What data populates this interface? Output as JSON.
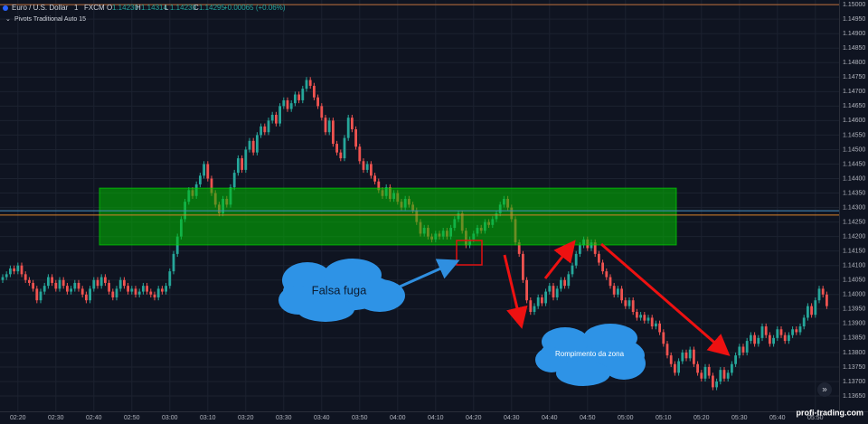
{
  "header": {
    "symbol": "Euro / U.S. Dollar",
    "interval": "1",
    "source": "FXCM",
    "ohlc": [
      {
        "label": "O",
        "value": "1.14230"
      },
      {
        "label": "H",
        "value": "1.14314"
      },
      {
        "label": "L",
        "value": "1.14230"
      },
      {
        "label": "C",
        "value": "1.14295"
      }
    ],
    "change": "+0.00065 (+0.06%)",
    "indicator": "Pivots Traditional Auto 15"
  },
  "annotations": {
    "false_breakout": "Falsa fuga",
    "zone_break": "Rompimento da zona"
  },
  "watermark": "profi-trading.com",
  "chart_data": {
    "type": "candlestick",
    "categories": [
      null,
      null,
      null,
      null,
      "02:20",
      null,
      null,
      null,
      null,
      null,
      null,
      null,
      null,
      null,
      "02:30",
      null,
      null,
      null,
      null,
      null,
      null,
      null,
      null,
      null,
      "02:40",
      null,
      null,
      null,
      null,
      null,
      null,
      null,
      null,
      null,
      "02:50",
      null,
      null,
      null,
      null,
      null,
      null,
      null,
      null,
      null,
      "03:00",
      null,
      null,
      null,
      null,
      null,
      null,
      null,
      null,
      null,
      "03:10",
      null,
      null,
      null,
      null,
      null,
      null,
      null,
      null,
      null,
      "03:20",
      null,
      null,
      null,
      null,
      null,
      null,
      null,
      null,
      null,
      "03:30",
      null,
      null,
      null,
      null,
      null,
      null,
      null,
      null,
      null,
      "03:40",
      null,
      null,
      null,
      null,
      null,
      null,
      null,
      null,
      null,
      "03:50",
      null,
      null,
      null,
      null,
      null,
      null,
      null,
      null,
      null,
      "04:00",
      null,
      null,
      null,
      null,
      null,
      null,
      null,
      null,
      null,
      "04:10",
      null,
      null,
      null,
      null,
      null,
      null,
      null,
      null,
      null,
      "04:20",
      null,
      null,
      null,
      null,
      null,
      null,
      null,
      null,
      null,
      "04:30",
      null,
      null,
      null,
      null,
      null,
      null,
      null,
      null,
      null,
      "04:40",
      null,
      null,
      null,
      null,
      null,
      null,
      null,
      null,
      null,
      "04:50",
      null,
      null,
      null,
      null,
      null,
      null,
      null,
      null,
      null,
      "05:00",
      null,
      null,
      null,
      null,
      null,
      null,
      null,
      null,
      null,
      "05:10",
      null,
      null,
      null,
      null,
      null,
      null,
      null,
      null,
      null,
      "05:20",
      null,
      null,
      null,
      null,
      null,
      null,
      null,
      null,
      null,
      "05:30",
      null,
      null,
      null,
      null,
      null,
      null,
      null,
      null,
      null,
      "05:40",
      null,
      null,
      null,
      null,
      null,
      null,
      null,
      null,
      null,
      "05:50",
      null,
      null,
      null
    ],
    "open": [
      1.1405,
      1.1406,
      1.1407,
      1.1409,
      1.1408,
      1.141,
      1.1407,
      1.1405,
      1.1404,
      1.1402,
      1.1398,
      1.1401,
      1.1403,
      1.1406,
      1.1404,
      1.1402,
      1.1405,
      1.1403,
      1.1401,
      1.1402,
      1.1404,
      1.1402,
      1.14,
      1.1398,
      1.1402,
      1.1405,
      1.1403,
      1.1406,
      1.1404,
      1.1401,
      1.1399,
      1.1402,
      1.1405,
      1.1403,
      1.1401,
      1.1402,
      1.14,
      1.1401,
      1.1403,
      1.1401,
      1.14,
      1.1399,
      1.1402,
      1.1401,
      1.1403,
      1.1408,
      1.1414,
      1.142,
      1.1426,
      1.1432,
      1.1436,
      1.1434,
      1.1438,
      1.1441,
      1.1445,
      1.144,
      1.1435,
      1.1431,
      1.1428,
      1.1433,
      1.1431,
      1.1437,
      1.1442,
      1.1447,
      1.1443,
      1.145,
      1.1453,
      1.1449,
      1.1455,
      1.1458,
      1.1456,
      1.146,
      1.1462,
      1.1459,
      1.1465,
      1.1467,
      1.1464,
      1.1466,
      1.1469,
      1.1467,
      1.1471,
      1.1474,
      1.1472,
      1.1468,
      1.1465,
      1.1461,
      1.1456,
      1.146,
      1.1452,
      1.1449,
      1.1447,
      1.1454,
      1.1461,
      1.1457,
      1.1451,
      1.1446,
      1.1443,
      1.1445,
      1.1441,
      1.1439,
      1.1436,
      1.1434,
      1.1437,
      1.1433,
      1.1435,
      1.1432,
      1.143,
      1.1433,
      1.1431,
      1.1429,
      1.1425,
      1.1421,
      1.1423,
      1.142,
      1.1419,
      1.1421,
      1.142,
      1.1422,
      1.142,
      1.1423,
      1.1426,
      1.1428,
      1.1422,
      1.1417,
      1.1419,
      1.1421,
      1.1423,
      1.1422,
      1.1425,
      1.1424,
      1.1426,
      1.1428,
      1.1431,
      1.1433,
      1.143,
      1.1426,
      1.1418,
      1.1414,
      1.1405,
      1.1398,
      1.1394,
      1.1396,
      1.1399,
      1.1397,
      1.1401,
      1.1403,
      1.1399,
      1.1402,
      1.1405,
      1.1403,
      1.1407,
      1.141,
      1.1414,
      1.1417,
      1.1419,
      1.1416,
      1.1418,
      1.1414,
      1.1411,
      1.1408,
      1.1406,
      1.1403,
      1.14,
      1.1402,
      1.1398,
      1.1396,
      1.1398,
      1.1394,
      1.1392,
      1.1393,
      1.1391,
      1.1392,
      1.1389,
      1.139,
      1.1387,
      1.1383,
      1.1379,
      1.1376,
      1.1373,
      1.1377,
      1.138,
      1.1378,
      1.1381,
      1.1376,
      1.1373,
      1.1371,
      1.1375,
      1.1372,
      1.1368,
      1.137,
      1.1374,
      1.1371,
      1.1373,
      1.1376,
      1.1379,
      1.1382,
      1.138,
      1.1384,
      1.1386,
      1.1383,
      1.1385,
      1.1389,
      1.1386,
      1.1383,
      1.1385,
      1.1388,
      1.1386,
      1.1384,
      1.1386,
      1.1388,
      1.1387,
      1.1389,
      1.1392,
      1.1396,
      1.1393,
      1.1398,
      1.1402,
      1.14
    ],
    "high": [
      1.1407,
      1.1408,
      1.141,
      1.141,
      1.1411,
      1.1411,
      1.1408,
      1.1406,
      1.1405,
      1.1403,
      1.1402,
      1.1404,
      1.1407,
      1.1407,
      1.1405,
      1.1406,
      1.1406,
      1.1404,
      1.1403,
      1.1405,
      1.1405,
      1.1403,
      1.1401,
      1.1403,
      1.1406,
      1.1406,
      1.1407,
      1.1407,
      1.1405,
      1.1402,
      1.1403,
      1.1406,
      1.1406,
      1.1404,
      1.1403,
      1.1403,
      1.1402,
      1.1404,
      1.1404,
      1.1402,
      1.1401,
      1.1403,
      1.1403,
      1.1404,
      1.1409,
      1.1415,
      1.1421,
      1.1427,
      1.1433,
      1.1437,
      1.1437,
      1.1439,
      1.1442,
      1.1446,
      1.1446,
      1.1441,
      1.1436,
      1.1432,
      1.1434,
      1.1434,
      1.1438,
      1.1443,
      1.1448,
      1.1448,
      1.1451,
      1.1454,
      1.1454,
      1.1456,
      1.1459,
      1.1459,
      1.1461,
      1.1463,
      1.1463,
      1.1466,
      1.1468,
      1.1468,
      1.1467,
      1.147,
      1.147,
      1.1472,
      1.1475,
      1.1475,
      1.1473,
      1.1469,
      1.1466,
      1.1462,
      1.1461,
      1.1461,
      1.1453,
      1.145,
      1.1455,
      1.1462,
      1.1462,
      1.1458,
      1.1452,
      1.1447,
      1.1446,
      1.1446,
      1.1442,
      1.144,
      1.1437,
      1.1438,
      1.1438,
      1.1436,
      1.1436,
      1.1433,
      1.1434,
      1.1434,
      1.1432,
      1.143,
      1.1426,
      1.1424,
      1.1424,
      1.1421,
      1.1422,
      1.1422,
      1.1423,
      1.1423,
      1.1424,
      1.1427,
      1.1429,
      1.1429,
      1.1423,
      1.142,
      1.1422,
      1.1424,
      1.1424,
      1.1426,
      1.1426,
      1.1427,
      1.1429,
      1.1432,
      1.1434,
      1.1434,
      1.1431,
      1.1427,
      1.1419,
      1.1415,
      1.1406,
      1.1399,
      1.1397,
      1.14,
      1.14,
      1.1402,
      1.1404,
      1.1404,
      1.1403,
      1.1406,
      1.1406,
      1.1408,
      1.1411,
      1.1415,
      1.1418,
      1.142,
      1.142,
      1.1419,
      1.1419,
      1.1415,
      1.1412,
      1.1409,
      1.1407,
      1.1404,
      1.1403,
      1.1403,
      1.1399,
      1.1399,
      1.1399,
      1.1395,
      1.1394,
      1.1394,
      1.1393,
      1.1393,
      1.1391,
      1.1391,
      1.1388,
      1.1384,
      1.138,
      1.1377,
      1.1378,
      1.1381,
      1.1381,
      1.1382,
      1.1382,
      1.1377,
      1.1374,
      1.1376,
      1.1376,
      1.1373,
      1.1371,
      1.1375,
      1.1375,
      1.1374,
      1.1377,
      1.138,
      1.1383,
      1.1383,
      1.1385,
      1.1387,
      1.1387,
      1.1386,
      1.139,
      1.139,
      1.1387,
      1.1386,
      1.1389,
      1.1389,
      1.1387,
      1.1387,
      1.1389,
      1.1389,
      1.139,
      1.1393,
      1.1397,
      1.1397,
      1.1399,
      1.1403,
      1.1403,
      1.1401
    ],
    "low": [
      1.1404,
      1.1405,
      1.1406,
      1.1407,
      1.1407,
      1.1406,
      1.1404,
      1.1403,
      1.1401,
      1.1397,
      1.1397,
      1.14,
      1.1402,
      1.1403,
      1.1401,
      1.1401,
      1.1402,
      1.14,
      1.14,
      1.1401,
      1.1401,
      1.1399,
      1.1397,
      1.1397,
      1.1401,
      1.1402,
      1.1402,
      1.1403,
      1.14,
      1.1398,
      1.1398,
      1.1401,
      1.1402,
      1.14,
      1.14,
      1.1399,
      1.1399,
      1.14,
      1.14,
      1.1399,
      1.1398,
      1.1398,
      1.14,
      1.14,
      1.1402,
      1.1407,
      1.1413,
      1.1419,
      1.1425,
      1.1431,
      1.1433,
      1.1433,
      1.1437,
      1.144,
      1.1439,
      1.1434,
      1.143,
      1.1427,
      1.1427,
      1.143,
      1.143,
      1.1436,
      1.1441,
      1.1442,
      1.1442,
      1.1449,
      1.1448,
      1.1448,
      1.1454,
      1.1455,
      1.1455,
      1.1459,
      1.1458,
      1.1458,
      1.1464,
      1.1463,
      1.1463,
      1.1465,
      1.1466,
      1.1466,
      1.147,
      1.1471,
      1.1467,
      1.1464,
      1.146,
      1.1455,
      1.1455,
      1.1451,
      1.1448,
      1.1446,
      1.1446,
      1.1453,
      1.1456,
      1.145,
      1.1445,
      1.1442,
      1.1442,
      1.144,
      1.1438,
      1.1435,
      1.1433,
      1.1433,
      1.1432,
      1.1432,
      1.1431,
      1.1429,
      1.1429,
      1.143,
      1.1428,
      1.1424,
      1.142,
      1.142,
      1.1419,
      1.1418,
      1.1418,
      1.1419,
      1.1419,
      1.1419,
      1.1419,
      1.1422,
      1.1425,
      1.1421,
      1.1416,
      1.1416,
      1.1418,
      1.142,
      1.1421,
      1.1421,
      1.1423,
      1.1423,
      1.1425,
      1.1427,
      1.143,
      1.1429,
      1.1425,
      1.1417,
      1.1413,
      1.1404,
      1.1397,
      1.1393,
      1.1393,
      1.1395,
      1.1396,
      1.1396,
      1.14,
      1.1398,
      1.1398,
      1.1401,
      1.1402,
      1.1402,
      1.1406,
      1.1409,
      1.1413,
      1.1416,
      1.1415,
      1.1415,
      1.1413,
      1.141,
      1.1407,
      1.1405,
      1.1402,
      1.1399,
      1.1399,
      1.1397,
      1.1395,
      1.1395,
      1.1393,
      1.1391,
      1.1391,
      1.139,
      1.139,
      1.1388,
      1.1388,
      1.1386,
      1.1382,
      1.1378,
      1.1375,
      1.1372,
      1.1372,
      1.1376,
      1.1377,
      1.1377,
      1.1375,
      1.1372,
      1.137,
      1.137,
      1.1371,
      1.1367,
      1.1367,
      1.1369,
      1.137,
      1.137,
      1.1372,
      1.1375,
      1.1378,
      1.1379,
      1.1379,
      1.1383,
      1.1382,
      1.1382,
      1.1384,
      1.1385,
      1.1382,
      1.1382,
      1.1384,
      1.1385,
      1.1383,
      1.1383,
      1.1385,
      1.1386,
      1.1386,
      1.1388,
      1.1391,
      1.1392,
      1.1392,
      1.1397,
      1.1399,
      1.1395
    ],
    "close": [
      1.1406,
      1.1407,
      1.1409,
      1.1408,
      1.141,
      1.1407,
      1.1405,
      1.1404,
      1.1402,
      1.1398,
      1.1401,
      1.1403,
      1.1406,
      1.1404,
      1.1402,
      1.1405,
      1.1403,
      1.1401,
      1.1402,
      1.1404,
      1.1402,
      1.14,
      1.1398,
      1.1402,
      1.1405,
      1.1403,
      1.1406,
      1.1404,
      1.1401,
      1.1399,
      1.1402,
      1.1405,
      1.1403,
      1.1401,
      1.1402,
      1.14,
      1.1401,
      1.1403,
      1.1401,
      1.14,
      1.1399,
      1.1402,
      1.1401,
      1.1403,
      1.1408,
      1.1414,
      1.142,
      1.1426,
      1.1432,
      1.1436,
      1.1434,
      1.1438,
      1.1441,
      1.1445,
      1.144,
      1.1435,
      1.1431,
      1.1428,
      1.1433,
      1.1431,
      1.1437,
      1.1442,
      1.1447,
      1.1443,
      1.145,
      1.1453,
      1.1449,
      1.1455,
      1.1458,
      1.1456,
      1.146,
      1.1462,
      1.1459,
      1.1465,
      1.1467,
      1.1464,
      1.1466,
      1.1469,
      1.1467,
      1.1471,
      1.1474,
      1.1472,
      1.1468,
      1.1465,
      1.1461,
      1.1456,
      1.146,
      1.1452,
      1.1449,
      1.1447,
      1.1454,
      1.1461,
      1.1457,
      1.1451,
      1.1446,
      1.1443,
      1.1445,
      1.1441,
      1.1439,
      1.1436,
      1.1434,
      1.1437,
      1.1433,
      1.1435,
      1.1432,
      1.143,
      1.1433,
      1.1431,
      1.1429,
      1.1425,
      1.1421,
      1.1423,
      1.142,
      1.1419,
      1.1421,
      1.142,
      1.1422,
      1.142,
      1.1423,
      1.1426,
      1.1428,
      1.1422,
      1.1417,
      1.1419,
      1.1421,
      1.1423,
      1.1422,
      1.1425,
      1.1424,
      1.1426,
      1.1428,
      1.1431,
      1.1433,
      1.143,
      1.1426,
      1.1418,
      1.1414,
      1.1405,
      1.1398,
      1.1394,
      1.1396,
      1.1399,
      1.1397,
      1.1401,
      1.1403,
      1.1399,
      1.1402,
      1.1405,
      1.1403,
      1.1407,
      1.141,
      1.1414,
      1.1417,
      1.1419,
      1.1416,
      1.1418,
      1.1414,
      1.1411,
      1.1408,
      1.1406,
      1.1403,
      1.14,
      1.1402,
      1.1398,
      1.1396,
      1.1398,
      1.1394,
      1.1392,
      1.1393,
      1.1391,
      1.1392,
      1.1389,
      1.139,
      1.1387,
      1.1383,
      1.1379,
      1.1376,
      1.1373,
      1.1377,
      1.138,
      1.1378,
      1.1381,
      1.1376,
      1.1373,
      1.1371,
      1.1375,
      1.1372,
      1.1368,
      1.137,
      1.1374,
      1.1371,
      1.1373,
      1.1376,
      1.1379,
      1.1382,
      1.138,
      1.1384,
      1.1386,
      1.1383,
      1.1385,
      1.1389,
      1.1386,
      1.1383,
      1.1385,
      1.1388,
      1.1386,
      1.1384,
      1.1386,
      1.1388,
      1.1387,
      1.1389,
      1.1392,
      1.1396,
      1.1393,
      1.1398,
      1.1402,
      1.14,
      1.1396
    ],
    "up_color": "#26a69a",
    "down_color": "#ef5350",
    "ylim": [
      1.13597,
      1.15016
    ],
    "yticks": [
      {
        "value": 1.1365,
        "label": "1.13650"
      },
      {
        "value": 1.137,
        "label": "1.13700"
      },
      {
        "value": 1.1375,
        "label": "1.13750"
      },
      {
        "value": 1.138,
        "label": "1.13800"
      },
      {
        "value": 1.1385,
        "label": "1.13850"
      },
      {
        "value": 1.139,
        "label": "1.13900"
      },
      {
        "value": 1.1395,
        "label": "1.13950"
      },
      {
        "value": 1.14,
        "label": "1.14000"
      },
      {
        "value": 1.1405,
        "label": "1.14050"
      },
      {
        "value": 1.141,
        "label": "1.14100"
      },
      {
        "value": 1.1415,
        "label": "1.14150"
      },
      {
        "value": 1.142,
        "label": "1.14200"
      },
      {
        "value": 1.1425,
        "label": "1.14250"
      },
      {
        "value": 1.143,
        "label": "1.14300"
      },
      {
        "value": 1.1435,
        "label": "1.14350"
      },
      {
        "value": 1.144,
        "label": "1.14400"
      },
      {
        "value": 1.1445,
        "label": "1.14450"
      },
      {
        "value": 1.145,
        "label": "1.14500"
      },
      {
        "value": 1.1455,
        "label": "1.14550"
      },
      {
        "value": 1.146,
        "label": "1.14600"
      },
      {
        "value": 1.1465,
        "label": "1.14650"
      },
      {
        "value": 1.147,
        "label": "1.14700"
      },
      {
        "value": 1.1475,
        "label": "1.14750"
      },
      {
        "value": 1.148,
        "label": "1.14800"
      },
      {
        "value": 1.1485,
        "label": "1.14850"
      },
      {
        "value": 1.149,
        "label": "1.14900"
      },
      {
        "value": 1.1495,
        "label": "1.14950"
      },
      {
        "value": 1.15,
        "label": "1.15000"
      }
    ],
    "grid": true,
    "zone": {
      "from": 1.14171,
      "to": 1.14367,
      "color": "rgba(0,190,0,0.55)"
    },
    "levels": [
      {
        "value": 1.15,
        "color": "#c0703a"
      },
      {
        "value": 1.14289,
        "color": "#4a8fbf"
      },
      {
        "value": 1.14274,
        "color": "#d9822b"
      }
    ]
  }
}
